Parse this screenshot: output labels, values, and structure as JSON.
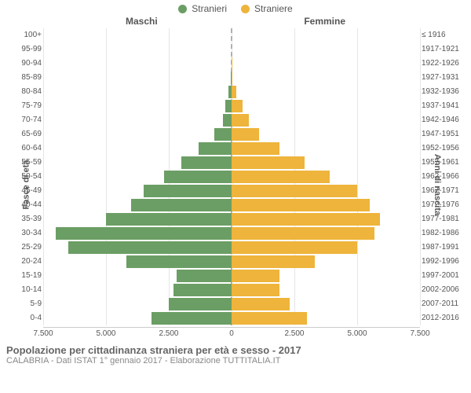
{
  "chart": {
    "type": "population-pyramid",
    "legend": {
      "male": {
        "label": "Stranieri",
        "color": "#6b9e64"
      },
      "female": {
        "label": "Straniere",
        "color": "#eeb43b"
      }
    },
    "headers": {
      "left": "Maschi",
      "right": "Femmine"
    },
    "y_label_left": "Fasce di età",
    "y_label_right": "Anni di nascita",
    "colors": {
      "male_bar": "#6b9e64",
      "female_bar": "#eeb43b",
      "grid": "#e6e6e6",
      "center_dash": "#b0b0b0",
      "text": "#555555",
      "background": "#ffffff"
    },
    "x_axis": {
      "max": 7500,
      "ticks": [
        {
          "pos": -7500,
          "label": "7.500"
        },
        {
          "pos": -5000,
          "label": "5.000"
        },
        {
          "pos": -2500,
          "label": "2.500"
        },
        {
          "pos": 0,
          "label": "0"
        },
        {
          "pos": 2500,
          "label": "2.500"
        },
        {
          "pos": 5000,
          "label": "5.000"
        },
        {
          "pos": 7500,
          "label": "7.500"
        }
      ]
    },
    "rows": [
      {
        "age": "100+",
        "years": "≤ 1916",
        "male": 0,
        "female": 0
      },
      {
        "age": "95-99",
        "years": "1917-1921",
        "male": 0,
        "female": 0
      },
      {
        "age": "90-94",
        "years": "1922-1926",
        "male": 10,
        "female": 20
      },
      {
        "age": "85-89",
        "years": "1927-1931",
        "male": 20,
        "female": 40
      },
      {
        "age": "80-84",
        "years": "1932-1936",
        "male": 120,
        "female": 200
      },
      {
        "age": "75-79",
        "years": "1937-1941",
        "male": 250,
        "female": 450
      },
      {
        "age": "70-74",
        "years": "1942-1946",
        "male": 350,
        "female": 700
      },
      {
        "age": "65-69",
        "years": "1947-1951",
        "male": 700,
        "female": 1100
      },
      {
        "age": "60-64",
        "years": "1952-1956",
        "male": 1300,
        "female": 1900
      },
      {
        "age": "55-59",
        "years": "1957-1961",
        "male": 2000,
        "female": 2900
      },
      {
        "age": "50-54",
        "years": "1962-1966",
        "male": 2700,
        "female": 3900
      },
      {
        "age": "45-49",
        "years": "1967-1971",
        "male": 3500,
        "female": 5000
      },
      {
        "age": "40-44",
        "years": "1972-1976",
        "male": 4000,
        "female": 5500
      },
      {
        "age": "35-39",
        "years": "1977-1981",
        "male": 5000,
        "female": 5900
      },
      {
        "age": "30-34",
        "years": "1982-1986",
        "male": 7000,
        "female": 5700
      },
      {
        "age": "25-29",
        "years": "1987-1991",
        "male": 6500,
        "female": 5000
      },
      {
        "age": "20-24",
        "years": "1992-1996",
        "male": 4200,
        "female": 3300
      },
      {
        "age": "15-19",
        "years": "1997-2001",
        "male": 2200,
        "female": 1900
      },
      {
        "age": "10-14",
        "years": "2002-2006",
        "male": 2300,
        "female": 1900
      },
      {
        "age": "5-9",
        "years": "2007-2011",
        "male": 2500,
        "female": 2300
      },
      {
        "age": "0-4",
        "years": "2012-2016",
        "male": 3200,
        "female": 3000
      }
    ],
    "footer": {
      "title": "Popolazione per cittadinanza straniera per età e sesso - 2017",
      "subtitle": "CALABRIA - Dati ISTAT 1° gennaio 2017 - Elaborazione TUTTITALIA.IT"
    }
  }
}
